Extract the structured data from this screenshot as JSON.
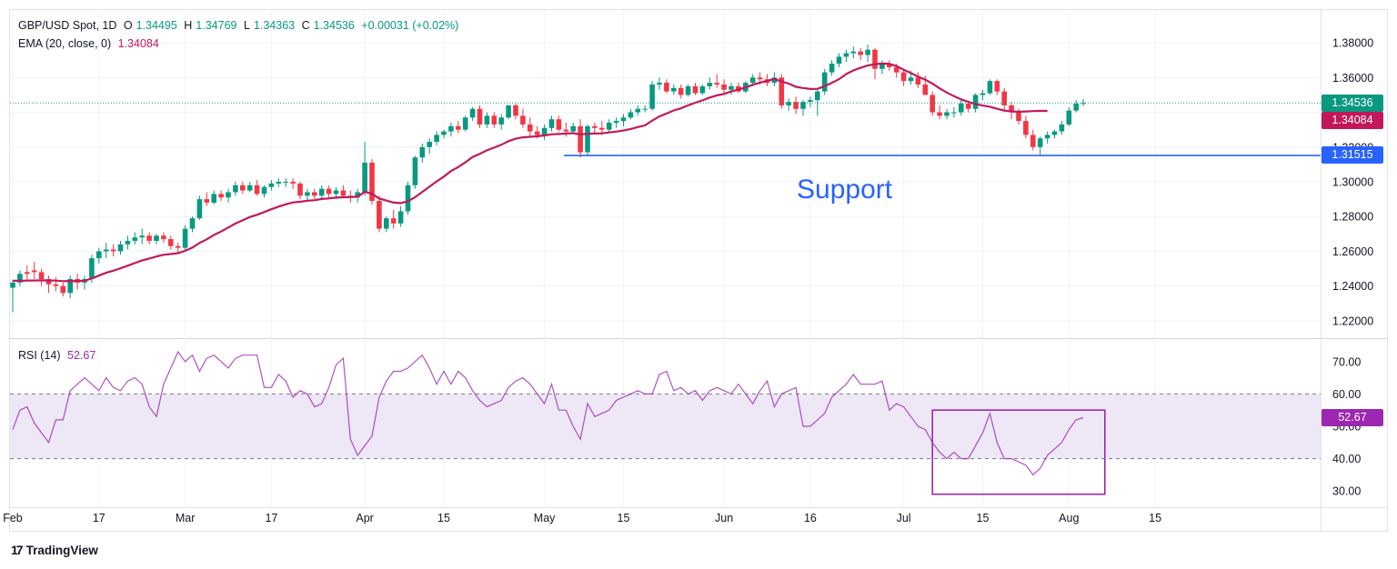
{
  "header": {
    "symbol": "GBP/USD Spot, 1D",
    "open_label": "O",
    "open": "1.34495",
    "high_label": "H",
    "high": "1.34769",
    "low_label": "L",
    "low": "1.34363",
    "close_label": "C",
    "close": "1.34536",
    "change": "+0.00031 (+0.02%)",
    "ema_label": "EMA (20, close, 0)",
    "ema_value": "1.34084",
    "rsi_label": "RSI (14)",
    "rsi_value": "52.67"
  },
  "badges": {
    "last_price": "1.34536",
    "ema_price": "1.34084",
    "support_price": "1.31515",
    "rsi_value": "52.67"
  },
  "annotation": {
    "support_text": "Support"
  },
  "brand": {
    "logo": "17",
    "name": "TradingView"
  },
  "colors": {
    "up": "#089981",
    "down": "#f23645",
    "ema": "#c2185b",
    "support": "#2962ff",
    "rsi": "#9c27b0",
    "rsi_band": "#ede7f6",
    "grid": "#f0f3fa"
  },
  "chart_data": [
    {
      "type": "candlestick",
      "title": "GBP/USD Spot, 1D",
      "ylim": [
        1.21,
        1.39
      ],
      "yticks": [
        "1.38000",
        "1.36000",
        "1.34000",
        "1.32000",
        "1.30000",
        "1.28000",
        "1.26000",
        "1.24000",
        "1.22000"
      ],
      "xticks": [
        "Feb",
        "17",
        "Mar",
        "17",
        "Apr",
        "15",
        "May",
        "15",
        "Jun",
        "16",
        "Jul",
        "15",
        "Aug",
        "15"
      ],
      "xtick_index": [
        0,
        12,
        24,
        36,
        49,
        60,
        74,
        85,
        99,
        111,
        124,
        135,
        147,
        159
      ],
      "candles": [
        [
          1.239,
          1.243,
          1.225,
          1.242
        ],
        [
          1.242,
          1.249,
          1.24,
          1.247
        ],
        [
          1.248,
          1.252,
          1.243,
          1.247
        ],
        [
          1.249,
          1.254,
          1.244,
          1.248
        ],
        [
          1.248,
          1.25,
          1.24,
          1.244
        ],
        [
          1.244,
          1.246,
          1.236,
          1.241
        ],
        [
          1.241,
          1.245,
          1.237,
          1.24
        ],
        [
          1.24,
          1.242,
          1.234,
          1.236
        ],
        [
          1.236,
          1.246,
          1.233,
          1.244
        ],
        [
          1.244,
          1.247,
          1.238,
          1.242
        ],
        [
          1.242,
          1.246,
          1.238,
          1.244
        ],
        [
          1.244,
          1.258,
          1.242,
          1.256
        ],
        [
          1.256,
          1.262,
          1.253,
          1.26
        ],
        [
          1.26,
          1.265,
          1.256,
          1.261
        ],
        [
          1.261,
          1.264,
          1.257,
          1.26
        ],
        [
          1.26,
          1.266,
          1.258,
          1.264
        ],
        [
          1.264,
          1.269,
          1.261,
          1.266
        ],
        [
          1.266,
          1.271,
          1.264,
          1.268
        ],
        [
          1.268,
          1.273,
          1.264,
          1.269
        ],
        [
          1.269,
          1.271,
          1.264,
          1.266
        ],
        [
          1.266,
          1.27,
          1.264,
          1.269
        ],
        [
          1.269,
          1.271,
          1.265,
          1.267
        ],
        [
          1.267,
          1.269,
          1.261,
          1.263
        ],
        [
          1.263,
          1.265,
          1.259,
          1.262
        ],
        [
          1.262,
          1.275,
          1.26,
          1.273
        ],
        [
          1.273,
          1.28,
          1.271,
          1.279
        ],
        [
          1.279,
          1.292,
          1.278,
          1.29
        ],
        [
          1.29,
          1.294,
          1.286,
          1.288
        ],
        [
          1.288,
          1.295,
          1.287,
          1.293
        ],
        [
          1.293,
          1.295,
          1.289,
          1.291
        ],
        [
          1.291,
          1.296,
          1.288,
          1.294
        ],
        [
          1.294,
          1.3,
          1.292,
          1.298
        ],
        [
          1.298,
          1.3,
          1.293,
          1.295
        ],
        [
          1.295,
          1.3,
          1.294,
          1.298
        ],
        [
          1.298,
          1.301,
          1.292,
          1.293
        ],
        [
          1.293,
          1.298,
          1.291,
          1.297
        ],
        [
          1.297,
          1.301,
          1.295,
          1.299
        ],
        [
          1.299,
          1.302,
          1.297,
          1.3
        ],
        [
          1.3,
          1.302,
          1.297,
          1.3
        ],
        [
          1.3,
          1.302,
          1.296,
          1.299
        ],
        [
          1.299,
          1.3,
          1.29,
          1.292
        ],
        [
          1.292,
          1.296,
          1.289,
          1.294
        ],
        [
          1.294,
          1.296,
          1.29,
          1.292
        ],
        [
          1.292,
          1.298,
          1.29,
          1.296
        ],
        [
          1.296,
          1.298,
          1.291,
          1.293
        ],
        [
          1.293,
          1.297,
          1.29,
          1.295
        ],
        [
          1.295,
          1.298,
          1.291,
          1.292
        ],
        [
          1.292,
          1.295,
          1.288,
          1.291
        ],
        [
          1.291,
          1.296,
          1.288,
          1.294
        ],
        [
          1.294,
          1.323,
          1.292,
          1.311
        ],
        [
          1.311,
          1.313,
          1.287,
          1.289
        ],
        [
          1.289,
          1.292,
          1.271,
          1.273
        ],
        [
          1.273,
          1.28,
          1.271,
          1.279
        ],
        [
          1.279,
          1.284,
          1.273,
          1.276
        ],
        [
          1.276,
          1.286,
          1.274,
          1.283
        ],
        [
          1.283,
          1.3,
          1.281,
          1.298
        ],
        [
          1.298,
          1.315,
          1.296,
          1.314
        ],
        [
          1.314,
          1.322,
          1.311,
          1.32
        ],
        [
          1.32,
          1.325,
          1.316,
          1.323
        ],
        [
          1.323,
          1.329,
          1.321,
          1.327
        ],
        [
          1.327,
          1.33,
          1.325,
          1.329
        ],
        [
          1.329,
          1.334,
          1.326,
          1.332
        ],
        [
          1.332,
          1.335,
          1.328,
          1.33
        ],
        [
          1.33,
          1.338,
          1.329,
          1.337
        ],
        [
          1.337,
          1.343,
          1.335,
          1.342
        ],
        [
          1.342,
          1.344,
          1.331,
          1.333
        ],
        [
          1.333,
          1.34,
          1.331,
          1.338
        ],
        [
          1.338,
          1.34,
          1.331,
          1.333
        ],
        [
          1.333,
          1.339,
          1.33,
          1.337
        ],
        [
          1.337,
          1.344,
          1.336,
          1.344
        ],
        [
          1.344,
          1.345,
          1.336,
          1.338
        ],
        [
          1.338,
          1.342,
          1.331,
          1.333
        ],
        [
          1.333,
          1.337,
          1.326,
          1.329
        ],
        [
          1.329,
          1.332,
          1.325,
          1.327
        ],
        [
          1.327,
          1.333,
          1.324,
          1.331
        ],
        [
          1.331,
          1.338,
          1.329,
          1.336
        ],
        [
          1.336,
          1.338,
          1.329,
          1.33
        ],
        [
          1.33,
          1.334,
          1.326,
          1.329
        ],
        [
          1.329,
          1.334,
          1.328,
          1.332
        ],
        [
          1.332,
          1.336,
          1.314,
          1.317
        ],
        [
          1.317,
          1.333,
          1.315,
          1.332
        ],
        [
          1.332,
          1.334,
          1.328,
          1.331
        ],
        [
          1.331,
          1.335,
          1.327,
          1.33
        ],
        [
          1.33,
          1.336,
          1.328,
          1.334
        ],
        [
          1.334,
          1.337,
          1.331,
          1.335
        ],
        [
          1.335,
          1.339,
          1.332,
          1.337
        ],
        [
          1.337,
          1.342,
          1.336,
          1.34
        ],
        [
          1.34,
          1.344,
          1.338,
          1.342
        ],
        [
          1.342,
          1.344,
          1.34,
          1.342
        ],
        [
          1.342,
          1.358,
          1.341,
          1.356
        ],
        [
          1.356,
          1.36,
          1.353,
          1.357
        ],
        [
          1.357,
          1.359,
          1.351,
          1.352
        ],
        [
          1.352,
          1.356,
          1.35,
          1.354
        ],
        [
          1.354,
          1.356,
          1.348,
          1.35
        ],
        [
          1.35,
          1.356,
          1.349,
          1.355
        ],
        [
          1.355,
          1.357,
          1.35,
          1.351
        ],
        [
          1.351,
          1.356,
          1.35,
          1.355
        ],
        [
          1.355,
          1.36,
          1.353,
          1.357
        ],
        [
          1.357,
          1.362,
          1.354,
          1.356
        ],
        [
          1.356,
          1.359,
          1.351,
          1.353
        ],
        [
          1.353,
          1.357,
          1.35,
          1.355
        ],
        [
          1.355,
          1.357,
          1.351,
          1.352
        ],
        [
          1.352,
          1.358,
          1.351,
          1.357
        ],
        [
          1.357,
          1.362,
          1.355,
          1.36
        ],
        [
          1.36,
          1.363,
          1.356,
          1.359
        ],
        [
          1.359,
          1.362,
          1.355,
          1.357
        ],
        [
          1.357,
          1.363,
          1.355,
          1.36
        ],
        [
          1.36,
          1.362,
          1.342,
          1.344
        ],
        [
          1.344,
          1.348,
          1.341,
          1.346
        ],
        [
          1.346,
          1.349,
          1.339,
          1.342
        ],
        [
          1.342,
          1.347,
          1.338,
          1.346
        ],
        [
          1.346,
          1.349,
          1.343,
          1.347
        ],
        [
          1.347,
          1.353,
          1.338,
          1.352
        ],
        [
          1.352,
          1.365,
          1.35,
          1.363
        ],
        [
          1.363,
          1.37,
          1.361,
          1.368
        ],
        [
          1.368,
          1.374,
          1.366,
          1.372
        ],
        [
          1.372,
          1.376,
          1.369,
          1.374
        ],
        [
          1.374,
          1.378,
          1.371,
          1.375
        ],
        [
          1.375,
          1.377,
          1.37,
          1.373
        ],
        [
          1.373,
          1.379,
          1.369,
          1.376
        ],
        [
          1.376,
          1.377,
          1.359,
          1.365
        ],
        [
          1.365,
          1.37,
          1.362,
          1.368
        ],
        [
          1.368,
          1.37,
          1.364,
          1.366
        ],
        [
          1.366,
          1.368,
          1.36,
          1.363
        ],
        [
          1.363,
          1.365,
          1.355,
          1.358
        ],
        [
          1.358,
          1.364,
          1.356,
          1.36
        ],
        [
          1.36,
          1.363,
          1.354,
          1.356
        ],
        [
          1.356,
          1.361,
          1.35,
          1.35
        ],
        [
          1.35,
          1.352,
          1.338,
          1.34
        ],
        [
          1.34,
          1.344,
          1.336,
          1.338
        ],
        [
          1.338,
          1.342,
          1.336,
          1.34
        ],
        [
          1.34,
          1.343,
          1.337,
          1.34
        ],
        [
          1.34,
          1.348,
          1.338,
          1.345
        ],
        [
          1.345,
          1.346,
          1.34,
          1.342
        ],
        [
          1.342,
          1.351,
          1.34,
          1.35
        ],
        [
          1.35,
          1.353,
          1.347,
          1.351
        ],
        [
          1.351,
          1.359,
          1.35,
          1.358
        ],
        [
          1.358,
          1.359,
          1.35,
          1.352
        ],
        [
          1.352,
          1.354,
          1.34,
          1.344
        ],
        [
          1.344,
          1.346,
          1.336,
          1.34
        ],
        [
          1.34,
          1.342,
          1.333,
          1.335
        ],
        [
          1.335,
          1.338,
          1.325,
          1.327
        ],
        [
          1.327,
          1.33,
          1.318,
          1.32
        ],
        [
          1.32,
          1.326,
          1.315,
          1.325
        ],
        [
          1.325,
          1.329,
          1.322,
          1.327
        ],
        [
          1.327,
          1.33,
          1.325,
          1.329
        ],
        [
          1.329,
          1.335,
          1.327,
          1.333
        ],
        [
          1.333,
          1.343,
          1.332,
          1.341
        ],
        [
          1.341,
          1.347,
          1.34,
          1.345
        ],
        [
          1.34495,
          1.34769,
          1.34363,
          1.34536
        ]
      ],
      "ema": [
        1.243,
        1.243,
        1.2431,
        1.2432,
        1.2433,
        1.2432,
        1.2431,
        1.2428,
        1.2429,
        1.2428,
        1.243,
        1.2444,
        1.246,
        1.2476,
        1.2488,
        1.2502,
        1.2517,
        1.2532,
        1.2547,
        1.2558,
        1.257,
        1.258,
        1.2584,
        1.2589,
        1.2603,
        1.2621,
        1.2648,
        1.2669,
        1.2694,
        1.2714,
        1.2737,
        1.276,
        1.2778,
        1.2797,
        1.281,
        1.2826,
        1.2842,
        1.2857,
        1.287,
        1.2881,
        1.2885,
        1.2891,
        1.2894,
        1.2901,
        1.2904,
        1.2909,
        1.2911,
        1.2912,
        1.2914,
        1.2942,
        1.2932,
        1.2903,
        1.2892,
        1.288,
        1.2877,
        1.2888,
        1.2911,
        1.2942,
        1.2972,
        1.3002,
        1.303,
        1.3062,
        1.3085,
        1.3112,
        1.3143,
        1.3161,
        1.3181,
        1.3197,
        1.3213,
        1.3234,
        1.3248,
        1.3256,
        1.3259,
        1.3262,
        1.3267,
        1.3273,
        1.3275,
        1.3278,
        1.328,
        1.3273,
        1.3276,
        1.3278,
        1.3279,
        1.3284,
        1.3289,
        1.3295,
        1.3304,
        1.3315,
        1.3325,
        1.3352,
        1.3376,
        1.3393,
        1.3411,
        1.3423,
        1.344,
        1.3455,
        1.3469,
        1.3485,
        1.3497,
        1.3506,
        1.352,
        1.353,
        1.3543,
        1.3559,
        1.3571,
        1.3581,
        1.3592,
        1.3577,
        1.3565,
        1.3547,
        1.354,
        1.3534,
        1.3535,
        1.355,
        1.357,
        1.3591,
        1.362,
        1.3641,
        1.3656,
        1.3669,
        1.3677,
        1.3681,
        1.3679,
        1.3666,
        1.3645,
        1.3626,
        1.3605,
        1.3588,
        1.3565,
        1.3538,
        1.3514,
        1.3493,
        1.3474,
        1.346,
        1.3448,
        1.3439,
        1.3432,
        1.342,
        1.341,
        1.3405,
        1.3403,
        1.3405,
        1.3407,
        1.3408,
        1.34084
      ],
      "support_level": 1.31515,
      "support_text": "Support"
    },
    {
      "type": "line",
      "title": "RSI (14)",
      "ylim": [
        25,
        75
      ],
      "yticks": [
        "70.00",
        "60.00",
        "50.00",
        "40.00",
        "30.00"
      ],
      "band": [
        40,
        60
      ],
      "values": [
        49,
        55,
        56,
        51,
        48,
        45,
        52,
        52,
        61,
        63,
        65,
        63,
        61,
        65,
        62,
        61,
        64,
        65,
        63,
        56,
        53,
        63,
        68,
        73,
        70,
        72,
        67,
        71,
        72,
        70,
        68,
        71,
        72,
        72,
        72,
        62,
        62,
        66,
        64,
        59,
        61,
        60,
        56,
        57,
        62,
        69,
        71,
        46,
        41,
        44,
        47,
        59,
        64,
        67,
        67,
        68,
        70,
        72,
        68,
        63,
        67,
        63,
        67,
        65,
        61,
        58,
        56,
        57,
        58,
        62,
        64,
        65,
        63,
        60,
        57,
        63,
        55,
        55,
        50,
        46,
        57,
        53,
        54,
        55,
        58,
        59,
        60,
        61,
        60,
        60,
        66,
        67,
        61,
        62,
        60,
        61,
        58,
        61,
        62,
        61,
        60,
        63,
        60,
        57,
        61,
        64,
        56,
        60,
        61,
        62,
        50,
        50,
        52,
        54,
        59,
        61,
        63,
        66,
        63,
        63,
        63,
        64,
        55,
        57,
        56,
        53,
        50,
        49,
        45,
        42,
        40,
        42,
        40,
        40,
        44,
        48,
        54,
        45,
        40,
        40,
        39,
        38,
        35,
        37,
        41,
        43,
        45,
        49,
        52,
        52.67
      ],
      "highlight_box": {
        "from": 128,
        "to": 152,
        "y_range": [
          29,
          55
        ]
      }
    }
  ]
}
